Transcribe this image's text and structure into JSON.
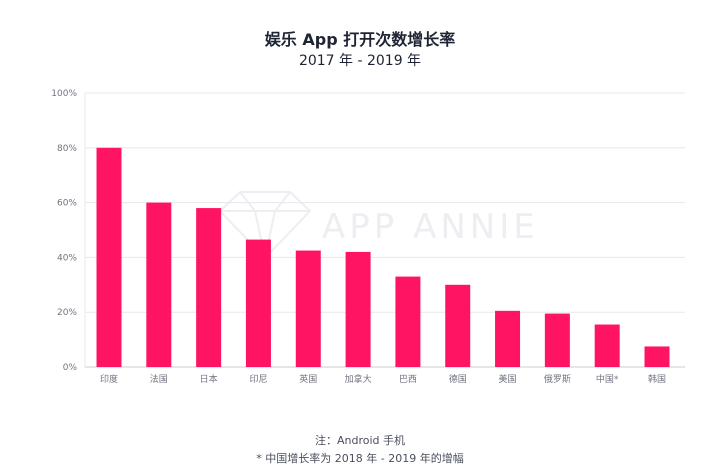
{
  "header": {
    "title": "娱乐 App 打开次数增长率",
    "subtitle": "2017 年 - 2019 年"
  },
  "watermark": {
    "text": "APP ANNIE"
  },
  "chart_data": {
    "type": "bar",
    "title": "娱乐 App 打开次数增长率",
    "subtitle": "2017 年 - 2019 年",
    "xlabel": "",
    "ylabel": "",
    "ylim": [
      0,
      100
    ],
    "yticks": [
      0,
      20,
      40,
      60,
      80,
      100
    ],
    "ytick_labels": [
      "0%",
      "20%",
      "40%",
      "60%",
      "80%",
      "100%"
    ],
    "grid": true,
    "bar_color": "#ff1464",
    "categories": [
      "印度",
      "法国",
      "日本",
      "印尼",
      "英国",
      "加拿大",
      "巴西",
      "德国",
      "美国",
      "俄罗斯",
      "中国*",
      "韩国"
    ],
    "values": [
      80,
      60,
      58,
      46.5,
      42.5,
      42,
      33,
      30,
      20.5,
      19.5,
      15.5,
      7.5
    ]
  },
  "footnotes": {
    "note": "注：Android 手机",
    "asterisk_note": "* 中国增长率为 2018 年 - 2019 年的增幅"
  }
}
